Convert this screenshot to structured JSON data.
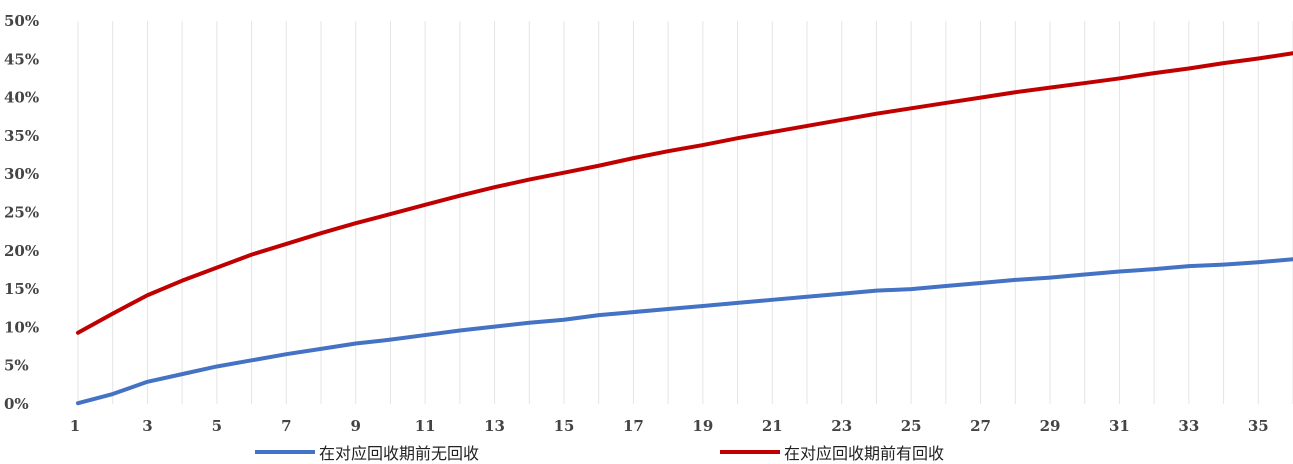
{
  "chart_data": {
    "type": "line",
    "title": "",
    "xlabel": "",
    "ylabel": "",
    "x": [
      1,
      2,
      3,
      4,
      5,
      6,
      7,
      8,
      9,
      10,
      11,
      12,
      13,
      14,
      15,
      16,
      17,
      18,
      19,
      20,
      21,
      22,
      23,
      24,
      25,
      26,
      27,
      28,
      29,
      30,
      31,
      32,
      33,
      34,
      35,
      36
    ],
    "x_tick_labels": [
      "1",
      "3",
      "5",
      "7",
      "9",
      "11",
      "13",
      "15",
      "17",
      "19",
      "21",
      "23",
      "25",
      "27",
      "29",
      "31",
      "33",
      "35"
    ],
    "y_tick_labels": [
      "0%",
      "5%",
      "10%",
      "15%",
      "20%",
      "25%",
      "30%",
      "35%",
      "40%",
      "45%",
      "50%"
    ],
    "ylim": [
      0,
      50
    ],
    "y_unit": "%",
    "grid": "vertical",
    "legend_position": "bottom",
    "series": [
      {
        "name": "在对应回收期前无回收",
        "color": "#4472C4",
        "values": [
          0.1,
          1.3,
          2.9,
          3.9,
          4.9,
          5.7,
          6.5,
          7.2,
          7.9,
          8.4,
          9.0,
          9.6,
          10.1,
          10.6,
          11.0,
          11.6,
          12.0,
          12.4,
          12.8,
          13.2,
          13.6,
          14.0,
          14.4,
          14.8,
          15.0,
          15.4,
          15.8,
          16.2,
          16.5,
          16.9,
          17.3,
          17.6,
          18.0,
          18.2,
          18.5,
          18.9
        ]
      },
      {
        "name": "在对应回收期前有回收",
        "color": "#C00000",
        "values": [
          9.3,
          11.8,
          14.2,
          16.1,
          17.8,
          19.5,
          20.9,
          22.3,
          23.6,
          24.8,
          26.0,
          27.2,
          28.3,
          29.3,
          30.2,
          31.1,
          32.1,
          33.0,
          33.8,
          34.7,
          35.5,
          36.3,
          37.1,
          37.9,
          38.6,
          39.3,
          40.0,
          40.7,
          41.3,
          41.9,
          42.5,
          43.2,
          43.8,
          44.5,
          45.1,
          45.8
        ]
      }
    ]
  }
}
